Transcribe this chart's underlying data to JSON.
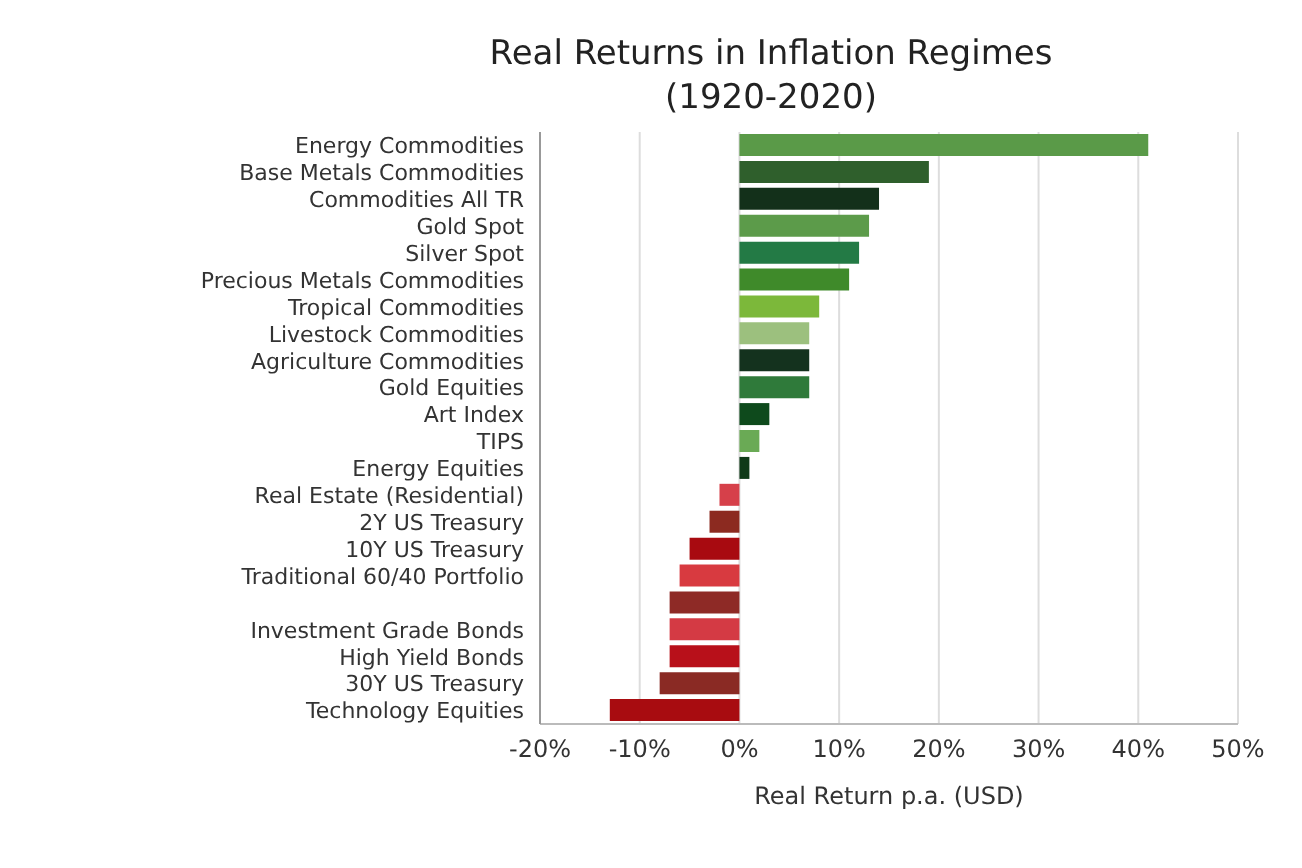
{
  "chart_data": {
    "type": "bar",
    "orientation": "horizontal",
    "title": "Real Returns in Inflation Regimes\n(1920-2020)",
    "xlabel": "Real Return p.a. (USD)",
    "categories": [
      "Energy Commodities",
      "Base Metals Commodities",
      "Commodities All TR",
      "Gold Spot",
      "Silver Spot",
      "Precious Metals Commodities",
      "Tropical Commodities",
      "Livestock Commodities",
      "Agriculture Commodities",
      "Gold Equities",
      "Art Index",
      "TIPS",
      "Energy Equities",
      "Real Estate (Residential)",
      "2Y US Treasury",
      "10Y US Treasury",
      "Traditional 60/40 Portfolio",
      null,
      "Investment Grade Bonds",
      "High Yield Bonds",
      "30Y US Treasury",
      "Technology Equities"
    ],
    "values": [
      41,
      19,
      14,
      13,
      12,
      11,
      8,
      7,
      7,
      7,
      3,
      2,
      1,
      -2,
      -3,
      -5,
      -6,
      -7,
      -7,
      -7,
      -8,
      -13
    ],
    "colors": [
      "#5a9a48",
      "#2f5f2c",
      "#13301a",
      "#5c9b4a",
      "#237a45",
      "#3f8a2a",
      "#7cb83a",
      "#9cc07e",
      "#14321e",
      "#2f7a3a",
      "#0e4a1c",
      "#6aaa55",
      "#0f3a18",
      "#d6404a",
      "#8c2a20",
      "#a80a10",
      "#d83a40",
      "#8e2a26",
      "#d43a44",
      "#b8101a",
      "#8a2a24",
      "#a80c10"
    ],
    "xlim": [
      -20,
      50
    ],
    "xticks": [
      {
        "value": -20,
        "label": "-20%"
      },
      {
        "value": -10,
        "label": "-10%"
      },
      {
        "value": 0,
        "label": "0%"
      },
      {
        "value": 10,
        "label": "10%"
      },
      {
        "value": 20,
        "label": "20%"
      },
      {
        "value": 30,
        "label": "30%"
      },
      {
        "value": 40,
        "label": "40%"
      },
      {
        "value": 50,
        "label": "50%"
      }
    ],
    "grid": "x"
  }
}
